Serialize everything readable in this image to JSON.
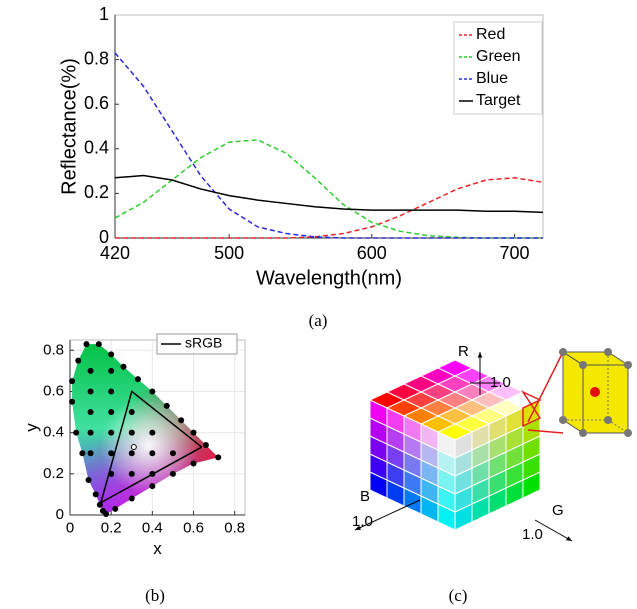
{
  "chart_data": [
    {
      "type": "line",
      "x": [
        420,
        440,
        460,
        480,
        500,
        520,
        540,
        560,
        580,
        600,
        620,
        640,
        660,
        680,
        700,
        720
      ],
      "xlim": [
        420,
        720
      ],
      "xticks": [
        420,
        500,
        600,
        700
      ],
      "ylim": [
        0,
        1
      ],
      "yticks": [
        0,
        0.2,
        0.4,
        0.6,
        0.8,
        1
      ],
      "xlabel": "Wavelength(nm)",
      "ylabel": "Reflectance(%)",
      "legend": "upper right",
      "series": [
        {
          "name": "Red",
          "color": "#e8242a",
          "linestyle": "dashed",
          "values": [
            0,
            0,
            0,
            0,
            0,
            0,
            0,
            0.005,
            0.02,
            0.05,
            0.1,
            0.16,
            0.22,
            0.26,
            0.27,
            0.25
          ]
        },
        {
          "name": "Green",
          "color": "#2ecc2e",
          "linestyle": "dashed",
          "values": [
            0.09,
            0.16,
            0.26,
            0.36,
            0.43,
            0.44,
            0.38,
            0.27,
            0.15,
            0.07,
            0.03,
            0.01,
            0.003,
            0,
            0,
            0
          ]
        },
        {
          "name": "Blue",
          "color": "#2a2ad8",
          "linestyle": "dashed",
          "values": [
            0.83,
            0.68,
            0.48,
            0.28,
            0.13,
            0.05,
            0.02,
            0.005,
            0,
            0,
            0,
            0,
            0,
            0,
            0,
            0
          ]
        },
        {
          "name": "Target",
          "color": "#000000",
          "linestyle": "solid",
          "values": [
            0.27,
            0.28,
            0.26,
            0.22,
            0.19,
            0.17,
            0.155,
            0.14,
            0.13,
            0.125,
            0.125,
            0.125,
            0.125,
            0.12,
            0.12,
            0.115
          ]
        }
      ]
    },
    {
      "type": "scatter",
      "xlim": [
        0,
        0.85
      ],
      "xticks": [
        0,
        0.2,
        0.4,
        0.6,
        0.8
      ],
      "ylim": [
        0,
        0.85
      ],
      "yticks": [
        0,
        0.2,
        0.4,
        0.6,
        0.8
      ],
      "xlabel": "x",
      "ylabel": "y",
      "legend": "upper right",
      "grid": true,
      "series": [
        {
          "color": "#000000",
          "marker": "dot",
          "x": [
            0.175,
            0.16,
            0.145,
            0.125,
            0.09,
            0.06,
            0.03,
            0.01,
            0.01,
            0.04,
            0.08,
            0.14,
            0.2,
            0.26,
            0.33,
            0.4,
            0.47,
            0.54,
            0.6,
            0.66,
            0.72,
            0.6,
            0.5,
            0.4,
            0.3,
            0.22,
            0.1,
            0.1,
            0.2,
            0.2,
            0.1,
            0.2,
            0.3,
            0.1,
            0.2,
            0.4,
            0.3,
            0.2,
            0.3,
            0.5,
            0.4,
            0.3,
            0.4,
            0.2,
            0.1
          ],
          "y": [
            0.005,
            0.02,
            0.05,
            0.1,
            0.17,
            0.3,
            0.4,
            0.55,
            0.65,
            0.75,
            0.83,
            0.83,
            0.78,
            0.72,
            0.66,
            0.6,
            0.53,
            0.46,
            0.4,
            0.34,
            0.28,
            0.25,
            0.2,
            0.14,
            0.08,
            0.03,
            0.6,
            0.5,
            0.6,
            0.5,
            0.4,
            0.4,
            0.5,
            0.3,
            0.3,
            0.4,
            0.4,
            0.2,
            0.3,
            0.3,
            0.3,
            0.2,
            0.2,
            0.7,
            0.7
          ]
        },
        {
          "color": "#ffffff",
          "marker": "open",
          "x": [
            0.31
          ],
          "y": [
            0.33
          ]
        },
        {
          "name": "sRGB",
          "color": "#000000",
          "marker": "line",
          "x": [
            0.64,
            0.3,
            0.15,
            0.64
          ],
          "y": [
            0.33,
            0.6,
            0.06,
            0.33
          ]
        }
      ]
    }
  ],
  "diagram": {
    "labels": {
      "r": "R",
      "r_max": "1.0",
      "b": "B",
      "b_max": "1.0",
      "g": "G",
      "g_max": "1.0"
    }
  },
  "captions": [
    "(a)",
    "(b)",
    "(c)"
  ]
}
